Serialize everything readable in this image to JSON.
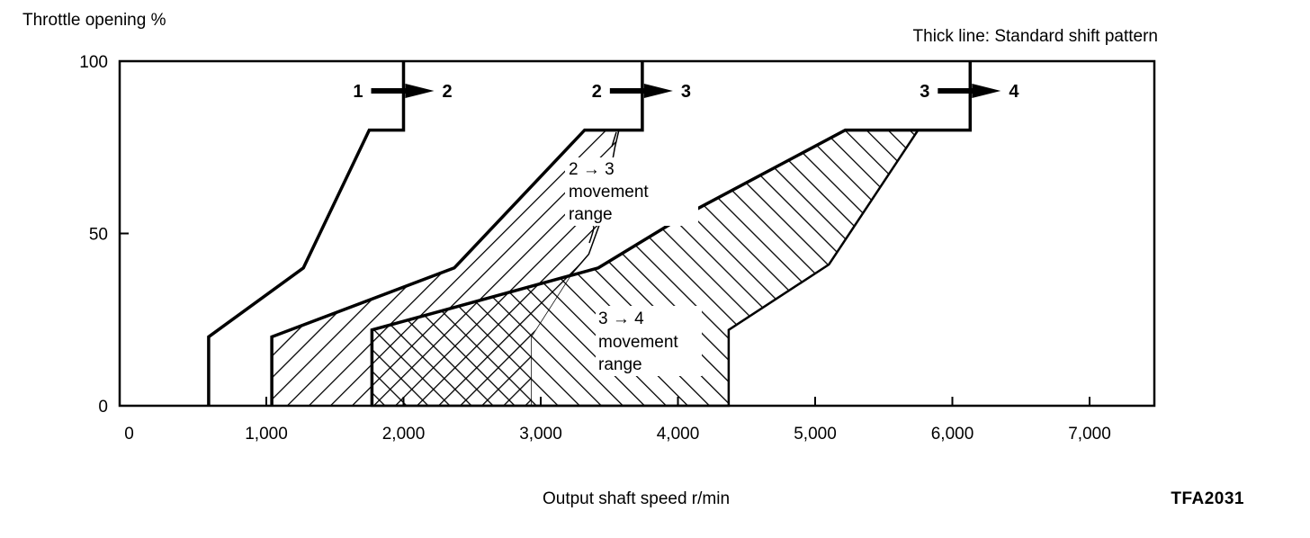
{
  "chart_data": {
    "type": "area",
    "title": "",
    "note": "Thick line: Standard shift pattern",
    "code": "TFA2031",
    "xlabel": "Output shaft speed r/min",
    "ylabel": "Throttle opening %",
    "xlim": [
      -70,
      7480
    ],
    "ylim": [
      0,
      100
    ],
    "xticks": [
      0,
      1000,
      2000,
      3000,
      4000,
      5000,
      6000,
      7000
    ],
    "xtick_labels": [
      "0",
      "1,000",
      "2,000",
      "3,000",
      "4,000",
      "5,000",
      "6,000",
      "7,000"
    ],
    "yticks": [
      0,
      50,
      100
    ],
    "ytick_labels": [
      "0",
      "50",
      "100"
    ],
    "grid": false,
    "shift_lines": [
      {
        "name": "1-2",
        "label_from": "1",
        "label_to": "2",
        "points": [
          [
            580,
            0
          ],
          [
            580,
            20
          ],
          [
            1270,
            40
          ],
          [
            1750,
            80
          ],
          [
            2000,
            80
          ],
          [
            2000,
            100
          ]
        ]
      },
      {
        "name": "2-3",
        "label_from": "2",
        "label_to": "3",
        "points": [
          [
            1040,
            0
          ],
          [
            1040,
            20
          ],
          [
            2370,
            40
          ],
          [
            3320,
            80
          ],
          [
            3740,
            80
          ],
          [
            3740,
            100
          ]
        ]
      },
      {
        "name": "3-4",
        "label_from": "3",
        "label_to": "4",
        "points": [
          [
            1770,
            0
          ],
          [
            1770,
            22
          ],
          [
            3420,
            40
          ],
          [
            4040,
            55
          ],
          [
            5220,
            80
          ],
          [
            6130,
            80
          ],
          [
            6130,
            100
          ]
        ]
      }
    ],
    "regions": [
      {
        "name": "2-3 movement range",
        "label_line1": "2 → 3",
        "label_line2": "movement",
        "label_line3": "range",
        "points": [
          [
            1040,
            0
          ],
          [
            1040,
            20
          ],
          [
            2370,
            40
          ],
          [
            3320,
            80
          ],
          [
            3570,
            80
          ],
          [
            3540,
            75
          ],
          [
            3450,
            55
          ],
          [
            3350,
            44
          ],
          [
            3220,
            38
          ],
          [
            2930,
            20
          ],
          [
            2930,
            0
          ]
        ]
      },
      {
        "name": "3-4 movement range",
        "label_line1": "3 → 4",
        "label_line2": "movement",
        "label_line3": "range",
        "points": [
          [
            1770,
            0
          ],
          [
            1770,
            22
          ],
          [
            3420,
            40
          ],
          [
            4040,
            55
          ],
          [
            5220,
            80
          ],
          [
            5750,
            80
          ],
          [
            5100,
            41
          ],
          [
            4370,
            22
          ],
          [
            4370,
            0
          ]
        ]
      }
    ]
  }
}
